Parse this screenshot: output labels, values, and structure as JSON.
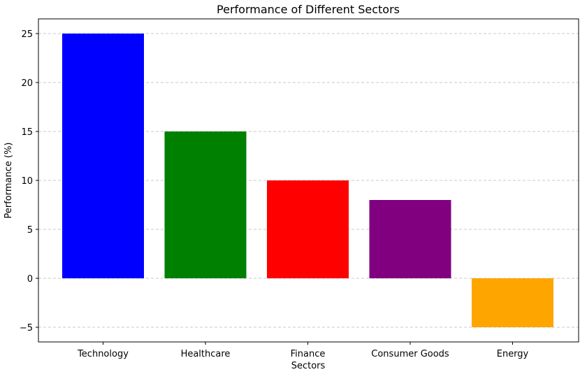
{
  "chart_data": {
    "type": "bar",
    "title": "Performance of Different Sectors",
    "xlabel": "Sectors",
    "ylabel": "Performance (%)",
    "categories": [
      "Technology",
      "Healthcare",
      "Finance",
      "Consumer Goods",
      "Energy"
    ],
    "values": [
      25,
      15,
      10,
      8,
      -5
    ],
    "colors": [
      "#0000ff",
      "#008000",
      "#ff0000",
      "#800080",
      "#ffa500"
    ],
    "yticks": [
      -5,
      0,
      5,
      10,
      15,
      20,
      25
    ],
    "ytick_labels": [
      "−5",
      "0",
      "5",
      "10",
      "15",
      "20",
      "25"
    ],
    "ylim": [
      -6.5,
      26.5
    ],
    "grid": "y-dashed",
    "legend": "none"
  }
}
